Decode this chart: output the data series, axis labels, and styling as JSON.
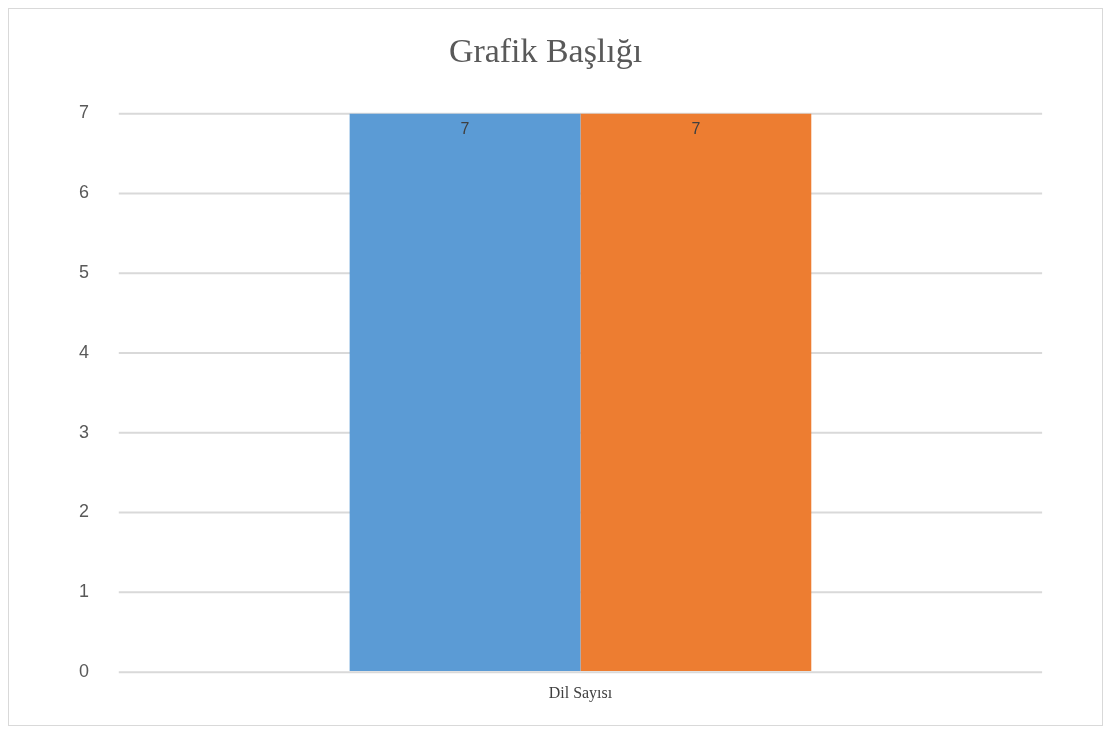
{
  "chart_data": {
    "type": "bar",
    "title": "Grafik Başlığı",
    "categories": [
      "Dil Sayısı"
    ],
    "series": [
      {
        "color": "#5b9bd5",
        "values": [
          7
        ]
      },
      {
        "color": "#ed7d31",
        "values": [
          7
        ]
      }
    ],
    "ylim": [
      0,
      7
    ],
    "yticks": [
      0,
      1,
      2,
      3,
      4,
      5,
      6,
      7
    ],
    "grid": "y",
    "data_labels": true,
    "legend": false
  }
}
